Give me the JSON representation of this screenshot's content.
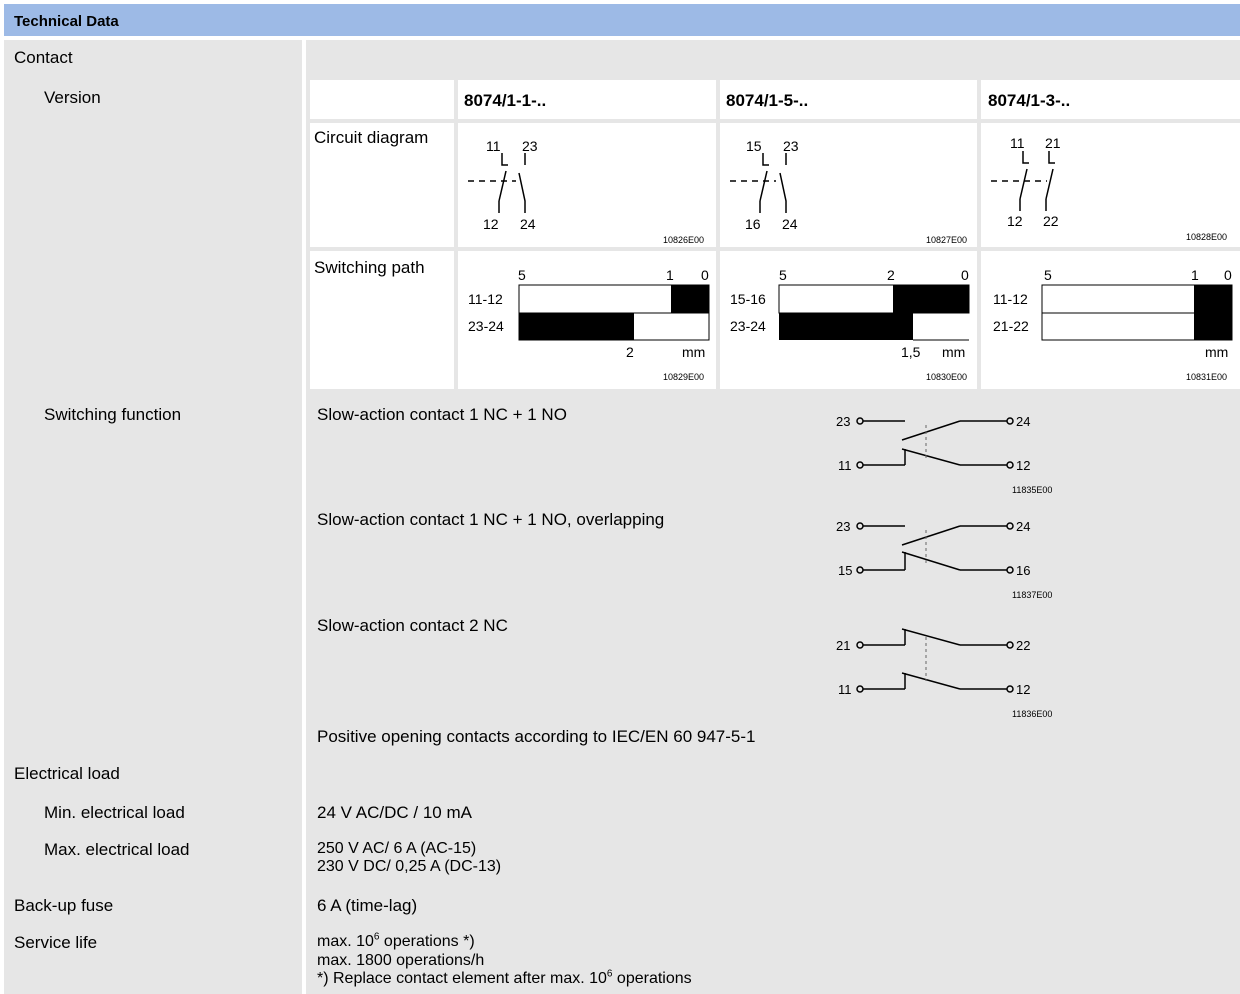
{
  "header": {
    "title": "Technical Data"
  },
  "labels": {
    "contact": "Contact",
    "version": "Version",
    "switching_function": "Switching function",
    "electrical_load": "Electrical load",
    "min_load": "Min. electrical load",
    "max_load": "Max. electrical load",
    "backup_fuse": "Back-up fuse",
    "service_life": "Service life"
  },
  "versions": [
    "8074/1-1-..",
    "8074/1-5-..",
    "8074/1-3-.."
  ],
  "circuit_diagram": {
    "label": "Circuit diagram",
    "diagrams": [
      {
        "top": [
          "11",
          "23"
        ],
        "bottom": [
          "12",
          "24"
        ],
        "code": "10826E00"
      },
      {
        "top": [
          "15",
          "23"
        ],
        "bottom": [
          "16",
          "24"
        ],
        "code": "10827E00"
      },
      {
        "top": [
          "11",
          "21"
        ],
        "bottom": [
          "12",
          "22"
        ],
        "code": "10828E00"
      }
    ]
  },
  "switching_path": {
    "label": "Switching path",
    "paths": [
      {
        "ticks": [
          "5",
          "1",
          "0"
        ],
        "rows": [
          "11-12",
          "23-24"
        ],
        "bottom": "2",
        "unit": "mm",
        "code": "10829E00"
      },
      {
        "ticks": [
          "5",
          "2",
          "0"
        ],
        "rows": [
          "15-16",
          "23-24"
        ],
        "bottom": "1,5",
        "unit": "mm",
        "code": "10830E00"
      },
      {
        "ticks": [
          "5",
          "1",
          "0"
        ],
        "rows": [
          "11-12",
          "21-22"
        ],
        "bottom": "",
        "unit": "mm",
        "code": "10831E00"
      }
    ]
  },
  "functions": [
    {
      "text": "Slow-action contact 1 NC + 1 NO",
      "top": [
        "23",
        "24"
      ],
      "bottom": [
        "11",
        "12"
      ],
      "code": "11835E00"
    },
    {
      "text": "Slow-action contact 1 NC + 1 NO, overlapping",
      "top": [
        "23",
        "24"
      ],
      "bottom": [
        "15",
        "16"
      ],
      "code": "11837E00"
    },
    {
      "text": "Slow-action contact 2 NC",
      "top": [
        "21",
        "22"
      ],
      "bottom": [
        "11",
        "12"
      ],
      "code": "11836E00"
    }
  ],
  "positive_opening": "Positive opening contacts according to IEC/EN 60 947-5-1",
  "values": {
    "min_load": "24 V AC/DC / 10 mA",
    "max_load_1": "250 V AC/ 6 A (AC-15)",
    "max_load_2": "230 V DC/ 0,25 A (DC-13)",
    "backup_fuse": "6 A (time-lag)",
    "service_1_pre": "max. 10",
    "service_1_sup": "6",
    "service_1_post": " operations *)",
    "service_2": "max. 1800 operations/h",
    "service_3_pre": "*) Replace contact element after max. 10",
    "service_3_sup": "6",
    "service_3_post": " operations"
  }
}
